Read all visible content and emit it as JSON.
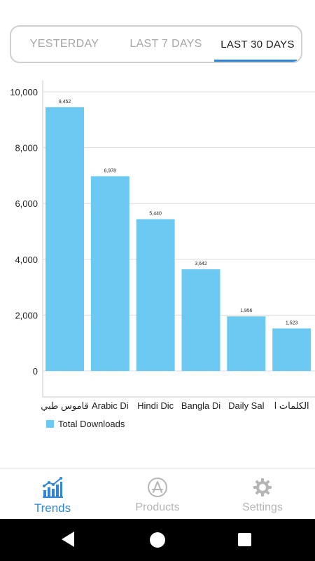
{
  "tabs": [
    {
      "label": "YESTERDAY",
      "active": false
    },
    {
      "label": "LAST 7 DAYS",
      "active": false
    },
    {
      "label": "LAST 30 DAYS",
      "active": true
    }
  ],
  "chart_data": {
    "type": "bar",
    "categories": [
      "قاموس طبي",
      "Arabic Di",
      "Hindi Dic",
      "Bangla Di",
      "Daily Sal",
      "الكلمات ا"
    ],
    "series": [
      {
        "name": "Total Downloads",
        "values": [
          9452,
          6978,
          5440,
          3642,
          1956,
          1523
        ],
        "color": "#6ccaf2"
      }
    ],
    "data_labels": [
      "9,452",
      "6,978",
      "5,440",
      "3,642",
      "1,956",
      "1,523"
    ],
    "y_ticks": [
      "0",
      "2,000",
      "4,000",
      "6,000",
      "8,000",
      "10,000"
    ],
    "ylim": [
      0,
      10000
    ],
    "grid": true,
    "legend": "bottom-left"
  },
  "nav": [
    {
      "label": "Trends",
      "icon": "trends-chart-icon",
      "active": true
    },
    {
      "label": "Products",
      "icon": "app-store-icon",
      "active": false
    },
    {
      "label": "Settings",
      "icon": "gear-icon",
      "active": false
    }
  ],
  "colors": {
    "accent": "#2f86d8",
    "bar": "#6ccaf2",
    "inactive": "#b5b5b5"
  }
}
